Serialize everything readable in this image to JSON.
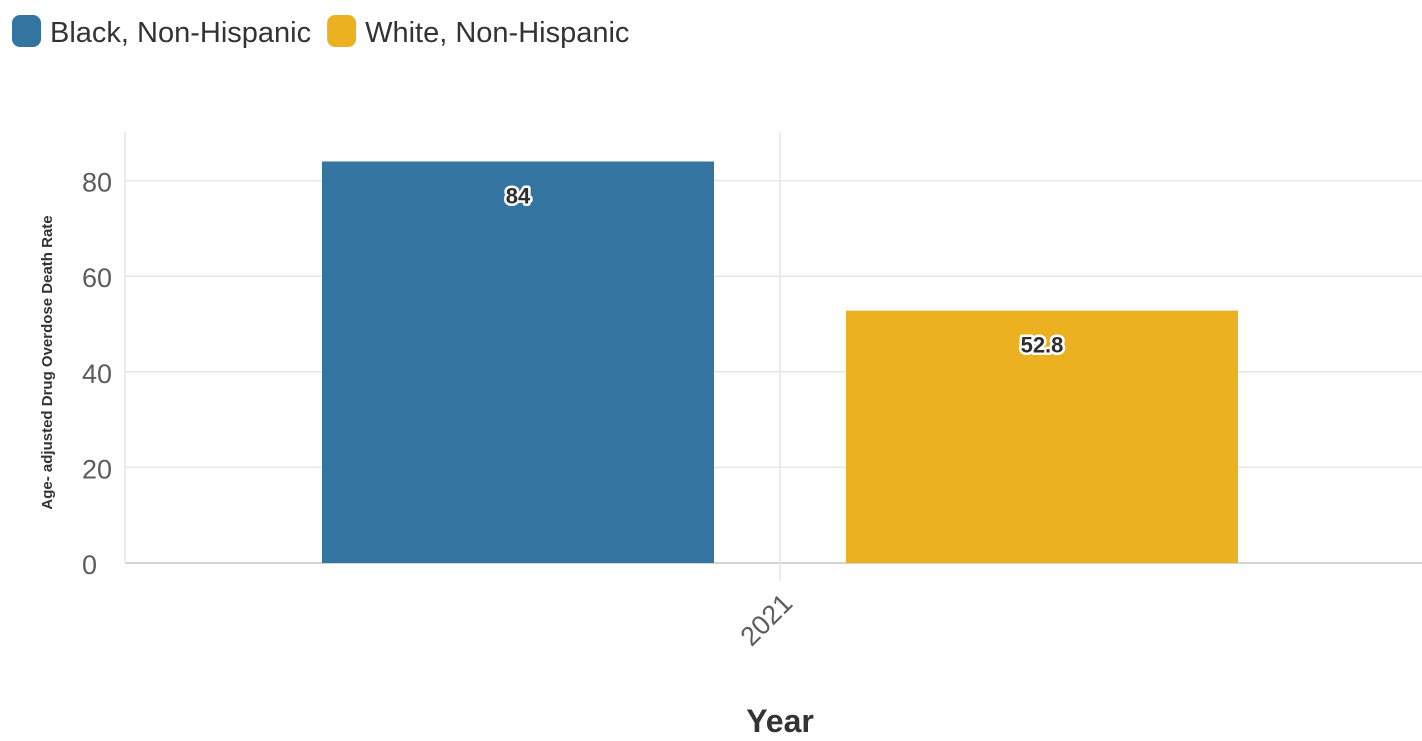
{
  "chart_data": {
    "type": "bar",
    "categories": [
      "2021"
    ],
    "series": [
      {
        "name": "Black, Non-Hispanic",
        "values": [
          84
        ],
        "color": "#3474a1"
      },
      {
        "name": "White, Non-Hispanic",
        "values": [
          52.8
        ],
        "color": "#ecb120"
      }
    ],
    "data_labels": [
      "84",
      "52.8"
    ],
    "xlabel": "Year",
    "ylabel": "Age- adjusted Drug Overdose Death Rate",
    "ylim": [
      0,
      90
    ],
    "yticks": [
      0,
      20,
      40,
      60,
      80
    ],
    "ytick_labels": [
      "0",
      "20",
      "40",
      "60",
      "80"
    ],
    "grid": true,
    "legend_position": "top-left"
  }
}
